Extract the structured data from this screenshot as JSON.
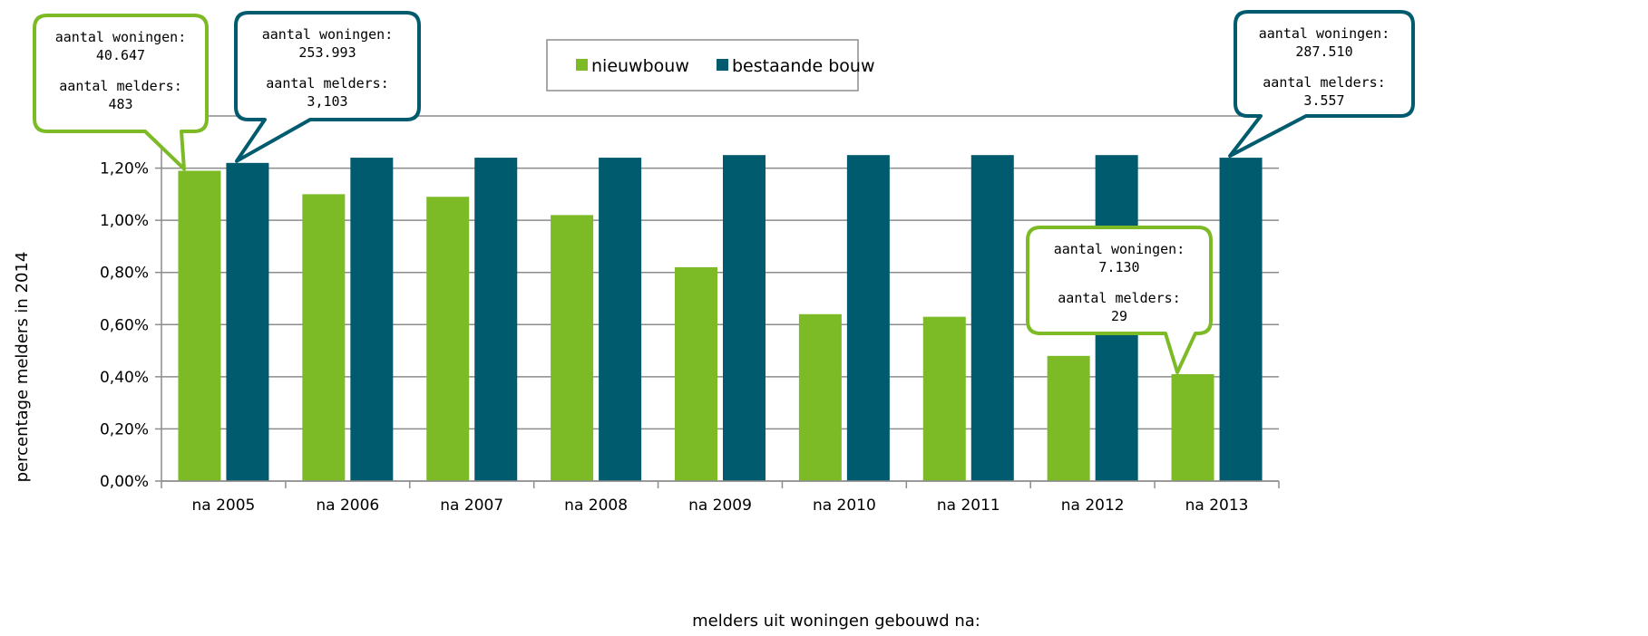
{
  "chart_data": {
    "type": "bar",
    "categories": [
      "na 2005",
      "na 2006",
      "na 2007",
      "na 2008",
      "na 2009",
      "na 2010",
      "na 2011",
      "na 2012",
      "na 2013"
    ],
    "series": [
      {
        "name": "nieuwbouw",
        "color": "#7cbb26",
        "values": [
          1.19,
          1.1,
          1.09,
          1.02,
          0.82,
          0.64,
          0.63,
          0.48,
          0.41
        ]
      },
      {
        "name": "bestaande bouw",
        "color": "#005b6e",
        "values": [
          1.22,
          1.24,
          1.24,
          1.24,
          1.25,
          1.25,
          1.25,
          1.25,
          1.24
        ]
      }
    ],
    "ylim": [
      0,
      1.4
    ],
    "yticks": [
      0.0,
      0.2,
      0.4,
      0.6,
      0.8,
      1.0,
      1.2,
      1.4
    ],
    "ytick_labels": [
      "0,00%",
      "0,20%",
      "0,40%",
      "0,60%",
      "0,80%",
      "1,00%",
      "1,20%",
      ""
    ],
    "xlabel": "melders uit woningen gebouwd na:",
    "ylabel": "percentage melders in 2014",
    "grid": true,
    "legend": "top-center",
    "annotations": [
      {
        "series": 0,
        "category": 0,
        "lines": [
          "aantal woningen:",
          "40.647",
          "",
          "aantal melders:",
          "483"
        ]
      },
      {
        "series": 1,
        "category": 0,
        "lines": [
          "aantal woningen:",
          "253.993",
          "",
          "aantal melders:",
          "3,103"
        ]
      },
      {
        "series": 1,
        "category": 8,
        "lines": [
          "aantal woningen:",
          "287.510",
          "",
          "aantal melders:",
          "3.557"
        ]
      },
      {
        "series": 0,
        "category": 8,
        "lines": [
          "aantal woningen:",
          "7.130",
          "",
          "aantal melders:",
          "29"
        ]
      }
    ]
  }
}
